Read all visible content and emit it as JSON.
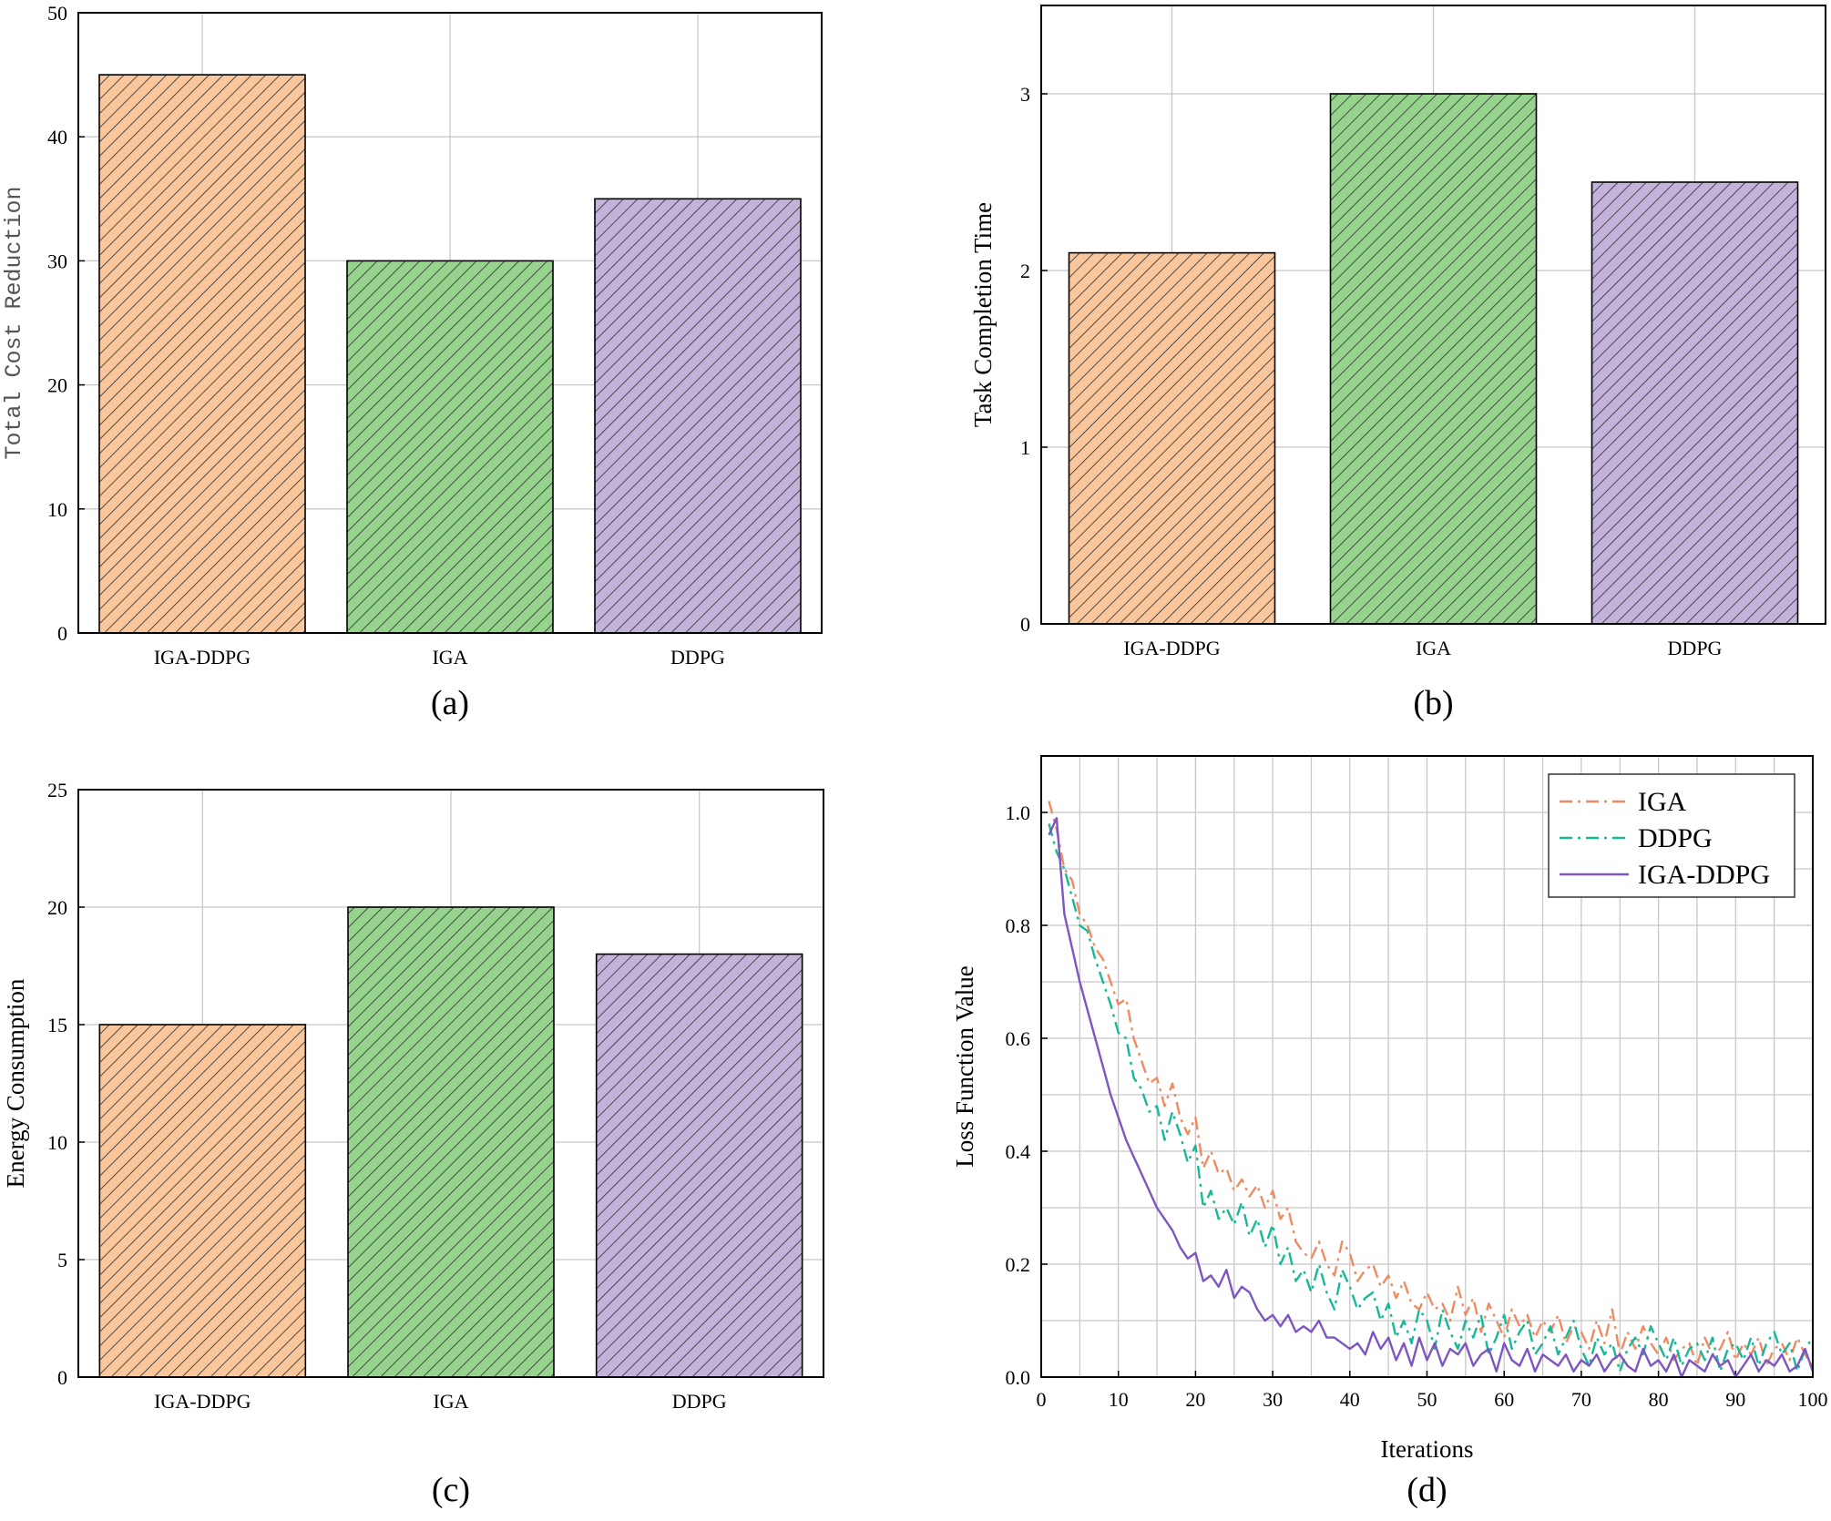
{
  "colors": {
    "orange_fill": "#F9C79B",
    "green_fill": "#96D48E",
    "purple_fill": "#C3B2DA",
    "hatch": "#333333",
    "iga_line": "#F08A62",
    "ddpg_line": "#17B897",
    "igaddpg_line": "#7E56C2"
  },
  "chart_data": [
    {
      "id": "a",
      "type": "bar",
      "panel_label": "(a)",
      "title": "",
      "xlabel": "",
      "ylabel": "Total Cost Reduction",
      "categories": [
        "IGA-DDPG",
        "IGA",
        "DDPG"
      ],
      "values": [
        45,
        30,
        35
      ],
      "ylim": [
        0,
        50
      ],
      "yticks": [
        "0",
        "10",
        "20",
        "30",
        "40",
        "50"
      ],
      "grid": true
    },
    {
      "id": "b",
      "type": "bar",
      "panel_label": "(b)",
      "title": "",
      "xlabel": "",
      "ylabel": "Task Completion Time",
      "categories": [
        "IGA-DDPG",
        "IGA",
        "DDPG"
      ],
      "values": [
        2.1,
        3.0,
        2.5
      ],
      "ylim": [
        0,
        3.5
      ],
      "yticks": [
        "0",
        "1",
        "2",
        "3"
      ],
      "grid": true
    },
    {
      "id": "c",
      "type": "bar",
      "panel_label": "(c)",
      "title": "",
      "xlabel": "",
      "ylabel": "Energy Consumption",
      "categories": [
        "IGA-DDPG",
        "IGA",
        "DDPG"
      ],
      "values": [
        15,
        20,
        18
      ],
      "ylim": [
        0,
        25
      ],
      "yticks": [
        "0",
        "5",
        "10",
        "15",
        "20",
        "25"
      ],
      "grid": true
    },
    {
      "id": "d",
      "type": "line",
      "panel_label": "(d)",
      "title": "",
      "xlabel": "Iterations",
      "ylabel": "Loss Function Value",
      "xlim": [
        0,
        100
      ],
      "ylim": [
        0,
        1.1
      ],
      "xticks": [
        "0",
        "10",
        "20",
        "30",
        "40",
        "50",
        "60",
        "70",
        "80",
        "90",
        "100"
      ],
      "yticks": [
        "0.0",
        "0.2",
        "0.4",
        "0.6",
        "0.8",
        "1.0"
      ],
      "legend_position": "top-right",
      "grid": true,
      "x": [
        1,
        2,
        3,
        4,
        5,
        6,
        7,
        8,
        9,
        10,
        11,
        12,
        13,
        14,
        15,
        16,
        17,
        18,
        19,
        20,
        21,
        22,
        23,
        24,
        25,
        26,
        27,
        28,
        29,
        30,
        31,
        32,
        33,
        34,
        35,
        36,
        37,
        38,
        39,
        40,
        41,
        42,
        43,
        44,
        45,
        46,
        47,
        48,
        49,
        50,
        51,
        52,
        53,
        54,
        55,
        56,
        57,
        58,
        59,
        60,
        61,
        62,
        63,
        64,
        65,
        66,
        67,
        68,
        69,
        70,
        71,
        72,
        73,
        74,
        75,
        76,
        77,
        78,
        79,
        80,
        81,
        82,
        83,
        84,
        85,
        86,
        87,
        88,
        89,
        90,
        91,
        92,
        93,
        94,
        95,
        96,
        97,
        98,
        99,
        100
      ],
      "series": [
        {
          "name": "IGA",
          "style": "dashdot",
          "values": [
            1.02,
            0.97,
            0.9,
            0.88,
            0.82,
            0.8,
            0.76,
            0.74,
            0.7,
            0.66,
            0.67,
            0.6,
            0.56,
            0.52,
            0.53,
            0.48,
            0.52,
            0.46,
            0.43,
            0.46,
            0.37,
            0.4,
            0.36,
            0.37,
            0.33,
            0.35,
            0.32,
            0.34,
            0.3,
            0.33,
            0.28,
            0.3,
            0.24,
            0.22,
            0.21,
            0.24,
            0.2,
            0.18,
            0.24,
            0.22,
            0.17,
            0.19,
            0.2,
            0.16,
            0.18,
            0.14,
            0.17,
            0.13,
            0.12,
            0.15,
            0.12,
            0.13,
            0.1,
            0.16,
            0.11,
            0.14,
            0.08,
            0.13,
            0.1,
            0.07,
            0.12,
            0.09,
            0.11,
            0.07,
            0.1,
            0.08,
            0.11,
            0.06,
            0.09,
            0.08,
            0.05,
            0.1,
            0.06,
            0.12,
            0.04,
            0.08,
            0.05,
            0.09,
            0.06,
            0.04,
            0.07,
            0.03,
            0.05,
            0.06,
            0.02,
            0.07,
            0.04,
            0.05,
            0.08,
            0.03,
            0.06,
            0.04,
            0.07,
            0.02,
            0.05,
            0.06,
            0.03,
            0.07,
            0.04,
            0.02
          ]
        },
        {
          "name": "DDPG",
          "style": "dashdot",
          "values": [
            0.98,
            0.93,
            0.9,
            0.85,
            0.8,
            0.79,
            0.74,
            0.7,
            0.66,
            0.61,
            0.6,
            0.53,
            0.51,
            0.47,
            0.48,
            0.42,
            0.47,
            0.43,
            0.38,
            0.41,
            0.3,
            0.33,
            0.28,
            0.3,
            0.27,
            0.31,
            0.25,
            0.28,
            0.23,
            0.27,
            0.2,
            0.23,
            0.17,
            0.19,
            0.15,
            0.2,
            0.15,
            0.12,
            0.19,
            0.16,
            0.12,
            0.14,
            0.15,
            0.1,
            0.13,
            0.07,
            0.1,
            0.06,
            0.12,
            0.1,
            0.05,
            0.12,
            0.08,
            0.05,
            0.1,
            0.07,
            0.11,
            0.04,
            0.07,
            0.11,
            0.05,
            0.08,
            0.1,
            0.04,
            0.06,
            0.09,
            0.04,
            0.07,
            0.1,
            0.05,
            0.02,
            0.07,
            0.04,
            0.06,
            0.01,
            0.05,
            0.07,
            0.04,
            0.09,
            0.06,
            0.03,
            0.07,
            0.02,
            0.05,
            0.06,
            0.03,
            0.07,
            0.01,
            0.05,
            0.06,
            0.03,
            0.07,
            0.02,
            0.06,
            0.08,
            0.04,
            0.06,
            0.01,
            0.05,
            0.07
          ]
        },
        {
          "name": "IGA-DDPG",
          "style": "solid",
          "values": [
            0.96,
            0.99,
            0.82,
            0.76,
            0.7,
            0.65,
            0.6,
            0.55,
            0.5,
            0.46,
            0.42,
            0.39,
            0.36,
            0.33,
            0.3,
            0.28,
            0.26,
            0.23,
            0.21,
            0.22,
            0.17,
            0.18,
            0.16,
            0.19,
            0.14,
            0.16,
            0.15,
            0.12,
            0.1,
            0.11,
            0.09,
            0.11,
            0.08,
            0.09,
            0.08,
            0.1,
            0.07,
            0.07,
            0.06,
            0.05,
            0.06,
            0.04,
            0.08,
            0.05,
            0.07,
            0.03,
            0.06,
            0.02,
            0.07,
            0.03,
            0.06,
            0.02,
            0.05,
            0.04,
            0.06,
            0.02,
            0.04,
            0.05,
            0.01,
            0.06,
            0.03,
            0.02,
            0.05,
            0.01,
            0.04,
            0.03,
            0.02,
            0.04,
            0.01,
            0.03,
            0.02,
            0.04,
            0.01,
            0.03,
            0.04,
            0.02,
            0.01,
            0.05,
            0.02,
            0.03,
            0.01,
            0.04,
            0.0,
            0.03,
            0.02,
            0.01,
            0.04,
            0.02,
            0.03,
            0.0,
            0.02,
            0.04,
            0.01,
            0.03,
            0.02,
            0.04,
            0.01,
            0.02,
            0.05,
            0.01
          ]
        }
      ]
    }
  ]
}
